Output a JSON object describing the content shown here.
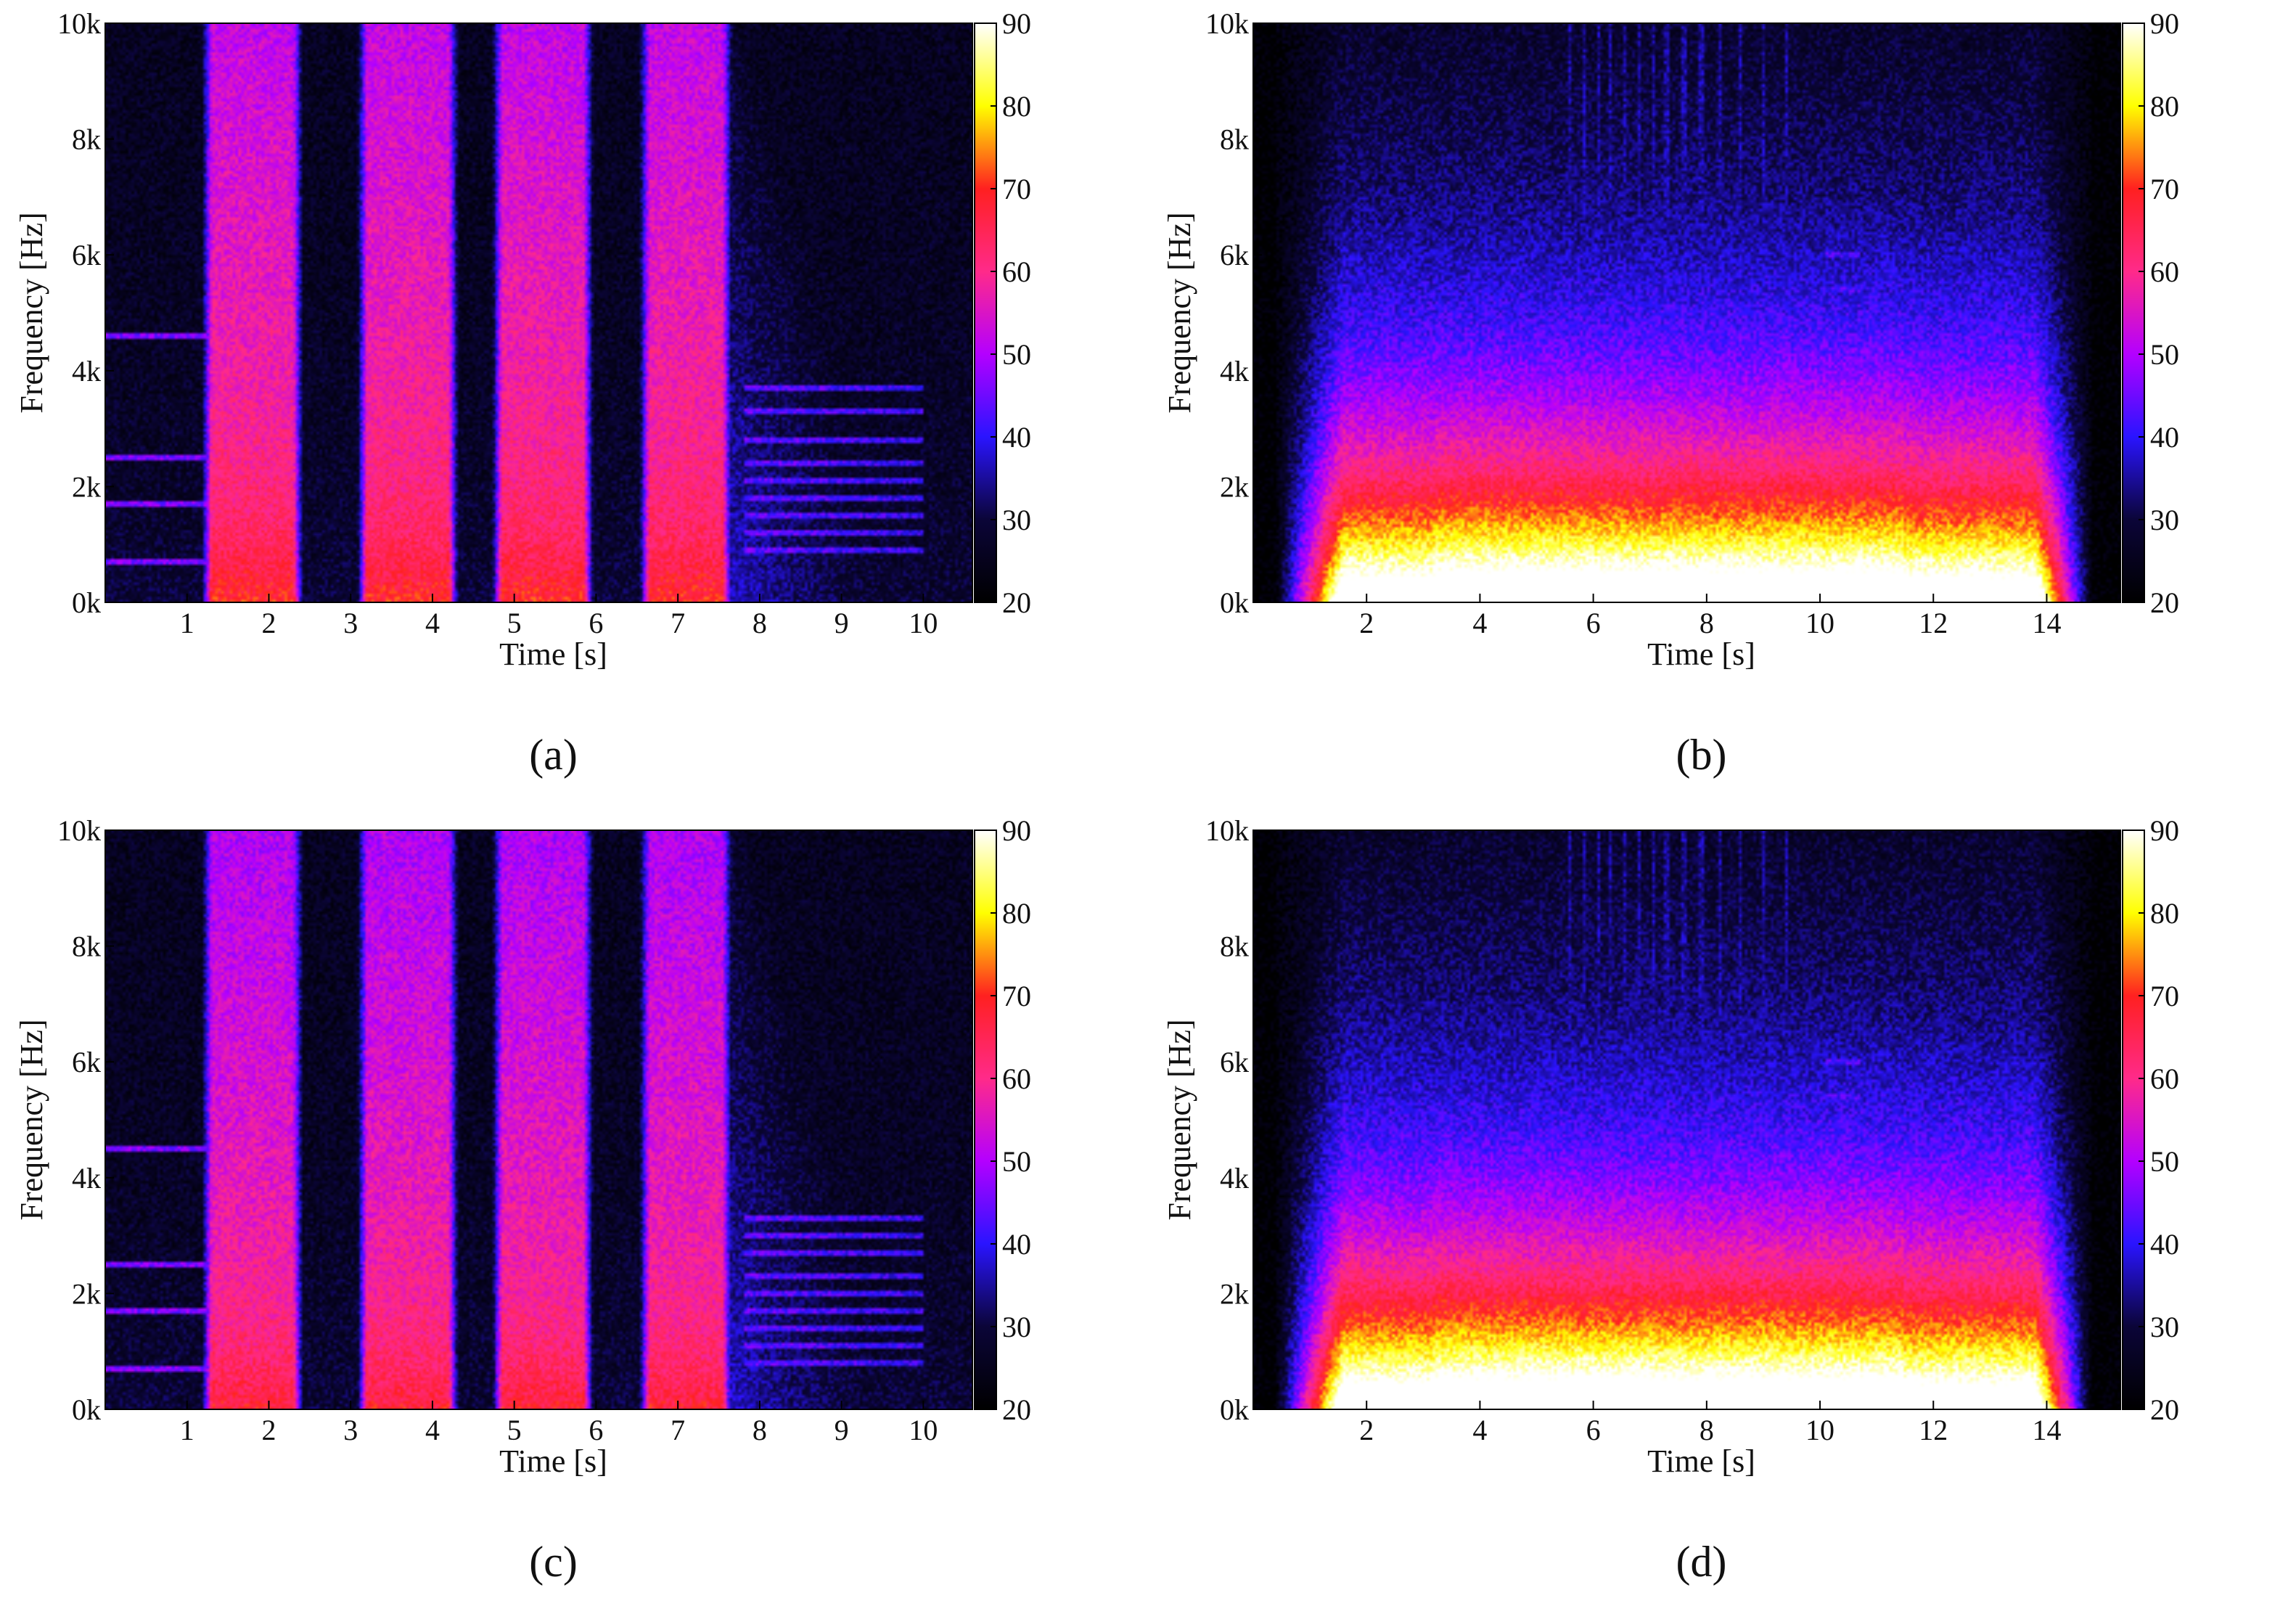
{
  "colormap": {
    "name": "hot-magenta",
    "stops": [
      "#000000",
      "#0b0538",
      "#2a14ff",
      "#b400ff",
      "#ff2a8a",
      "#ff2020",
      "#ffff00",
      "#ffffff"
    ]
  },
  "chart_data": [
    {
      "type": "heatmap",
      "caption": "(a)",
      "xlabel": "Time [s]",
      "ylabel": "Frequency [Hz]",
      "xlim": [
        0,
        10.6
      ],
      "ylim": [
        0,
        10000
      ],
      "xticks": [
        1,
        2,
        3,
        4,
        5,
        6,
        7,
        8,
        9,
        10
      ],
      "xtick_labels": [
        "1",
        "2",
        "3",
        "4",
        "5",
        "6",
        "7",
        "8",
        "9",
        "10"
      ],
      "yticks": [
        0,
        2000,
        4000,
        6000,
        8000,
        10000
      ],
      "ytick_labels": [
        "0k",
        "2k",
        "4k",
        "6k",
        "8k",
        "10k"
      ],
      "colorbar": {
        "min": 20,
        "max": 90,
        "ticks": [
          20,
          30,
          40,
          50,
          60,
          70,
          80,
          90
        ],
        "tick_labels": [
          "20",
          "30",
          "40",
          "50",
          "60",
          "70",
          "80",
          "90"
        ]
      },
      "events": [
        {
          "start": 1.3,
          "end": 2.3,
          "level_db": 62,
          "top_hz": 10000
        },
        {
          "start": 3.2,
          "end": 4.2,
          "level_db": 62,
          "top_hz": 10000
        },
        {
          "start": 4.85,
          "end": 5.85,
          "level_db": 62,
          "top_hz": 10000
        },
        {
          "start": 6.65,
          "end": 7.55,
          "level_db": 62,
          "top_hz": 10000
        }
      ],
      "decay_end_s": 10.2,
      "tones_hz": [
        700,
        1700,
        2500,
        4600
      ],
      "harmonic_tail": {
        "start": 7.8,
        "end": 10.0,
        "freqs_hz": [
          900,
          1200,
          1500,
          1800,
          2100,
          2400,
          2800,
          3300,
          3700
        ]
      }
    },
    {
      "type": "heatmap",
      "caption": "(b)",
      "xlabel": "Time [s]",
      "ylabel": "Frequency [Hz]",
      "xlim": [
        0,
        15.3
      ],
      "ylim": [
        0,
        10000
      ],
      "xticks": [
        2,
        4,
        6,
        8,
        10,
        12,
        14
      ],
      "xtick_labels": [
        "2",
        "4",
        "6",
        "8",
        "10",
        "12",
        "14"
      ],
      "yticks": [
        0,
        2000,
        4000,
        6000,
        8000,
        10000
      ],
      "ytick_labels": [
        "0k",
        "2k",
        "4k",
        "6k",
        "8k",
        "10k"
      ],
      "colorbar": {
        "min": 20,
        "max": 90,
        "ticks": [
          20,
          30,
          40,
          50,
          60,
          70,
          80,
          90
        ],
        "tick_labels": [
          "20",
          "30",
          "40",
          "50",
          "60",
          "70",
          "80",
          "90"
        ]
      },
      "active_range_s": [
        0.4,
        14.8
      ],
      "low_band_db": 55,
      "spikes_s": [
        5.6,
        5.85,
        6.1,
        6.3,
        6.55,
        6.8,
        7.05,
        7.3,
        7.6,
        7.9,
        8.25,
        8.6,
        9.0,
        9.4
      ],
      "tones_hz": [
        700,
        1900,
        4400,
        5400,
        6000
      ],
      "tone_cluster_s": [
        10.1,
        10.7
      ]
    },
    {
      "type": "heatmap",
      "caption": "(c)",
      "xlabel": "Time [s]",
      "ylabel": "Frequency [Hz]",
      "xlim": [
        0,
        10.6
      ],
      "ylim": [
        0,
        10000
      ],
      "xticks": [
        1,
        2,
        3,
        4,
        5,
        6,
        7,
        8,
        9,
        10
      ],
      "xtick_labels": [
        "1",
        "2",
        "3",
        "4",
        "5",
        "6",
        "7",
        "8",
        "9",
        "10"
      ],
      "yticks": [
        0,
        2000,
        4000,
        6000,
        8000,
        10000
      ],
      "ytick_labels": [
        "0k",
        "2k",
        "4k",
        "6k",
        "8k",
        "10k"
      ],
      "colorbar": {
        "min": 20,
        "max": 90,
        "ticks": [
          20,
          30,
          40,
          50,
          60,
          70,
          80,
          90
        ],
        "tick_labels": [
          "20",
          "30",
          "40",
          "50",
          "60",
          "70",
          "80",
          "90"
        ]
      },
      "events": [
        {
          "start": 1.3,
          "end": 2.3,
          "level_db": 60,
          "top_hz": 10000
        },
        {
          "start": 3.2,
          "end": 4.2,
          "level_db": 60,
          "top_hz": 10000
        },
        {
          "start": 4.85,
          "end": 5.85,
          "level_db": 60,
          "top_hz": 10000
        },
        {
          "start": 6.65,
          "end": 7.55,
          "level_db": 60,
          "top_hz": 10000
        }
      ],
      "decay_end_s": 10.2,
      "tones_hz": [
        700,
        1700,
        2500,
        4500
      ],
      "harmonic_tail": {
        "start": 7.8,
        "end": 10.0,
        "freqs_hz": [
          800,
          1100,
          1400,
          1700,
          2000,
          2300,
          2700,
          3000,
          3300
        ]
      }
    },
    {
      "type": "heatmap",
      "caption": "(d)",
      "xlabel": "Time [s]",
      "ylabel": "Frequency [Hz]",
      "xlim": [
        0,
        15.3
      ],
      "ylim": [
        0,
        10000
      ],
      "xticks": [
        2,
        4,
        6,
        8,
        10,
        12,
        14
      ],
      "xtick_labels": [
        "2",
        "4",
        "6",
        "8",
        "10",
        "12",
        "14"
      ],
      "yticks": [
        0,
        2000,
        4000,
        6000,
        8000,
        10000
      ],
      "ytick_labels": [
        "0k",
        "2k",
        "4k",
        "6k",
        "8k",
        "10k"
      ],
      "colorbar": {
        "min": 20,
        "max": 90,
        "ticks": [
          20,
          30,
          40,
          50,
          60,
          70,
          80,
          90
        ],
        "tick_labels": [
          "20",
          "30",
          "40",
          "50",
          "60",
          "70",
          "80",
          "90"
        ]
      },
      "active_range_s": [
        0.4,
        14.8
      ],
      "low_band_db": 55,
      "spikes_s": [
        5.6,
        5.85,
        6.1,
        6.3,
        6.55,
        6.8,
        7.05,
        7.3,
        7.6,
        7.9,
        8.25,
        8.6,
        9.0,
        9.4
      ],
      "tones_hz": [
        700,
        1900,
        4300,
        5400,
        6000
      ],
      "tone_cluster_s": [
        10.1,
        10.7
      ]
    }
  ]
}
